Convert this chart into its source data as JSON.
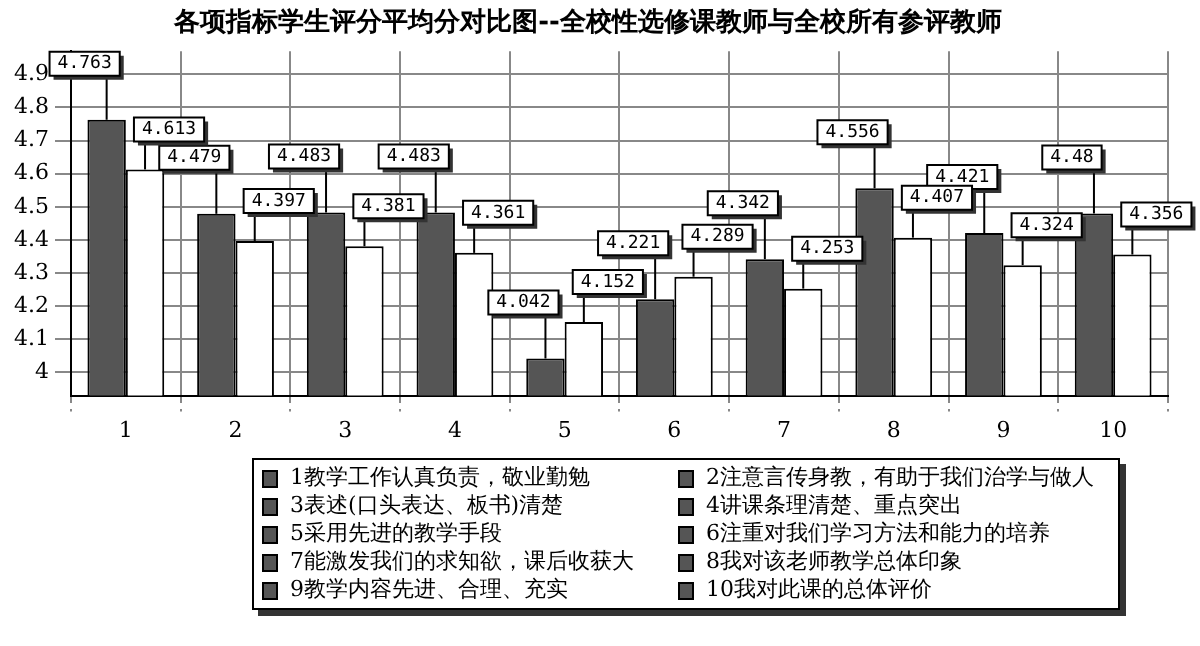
{
  "chart_data": {
    "type": "bar",
    "title": "各项指标学生评分平均分对比图--全校性选修课教师与全校所有参评教师",
    "categories": [
      "1",
      "2",
      "3",
      "4",
      "5",
      "6",
      "7",
      "8",
      "9",
      "10"
    ],
    "series": [
      {
        "color": "#555555",
        "values": [
          4.763,
          4.479,
          4.483,
          4.483,
          4.042,
          4.221,
          4.342,
          4.556,
          4.421,
          4.48
        ]
      },
      {
        "color": "#ffffff",
        "values": [
          4.613,
          4.397,
          4.381,
          4.361,
          4.152,
          4.289,
          4.253,
          4.407,
          4.324,
          4.356
        ]
      }
    ],
    "ylim": [
      3.93,
      4.97
    ],
    "yticks": [
      4,
      4.1,
      4.2,
      4.3,
      4.4,
      4.5,
      4.6,
      4.7,
      4.8,
      4.9
    ],
    "grid": true,
    "data_labels": true,
    "legend": false,
    "annotations": [
      "1教学工作认真负责，敬业勤勉",
      "2注意言传身教，有助于我们治学与做人",
      "3表述(口头表达、板书)清楚",
      "4讲课条理清楚、重点突出",
      "5采用先进的教学手段",
      "6注重对我们学习方法和能力的培养",
      "7能激发我们的求知欲，课后收获大",
      "8我对该老师教学总体印象",
      "9教学内容先进、合理、充实",
      "10我对此课的总体评价"
    ]
  }
}
